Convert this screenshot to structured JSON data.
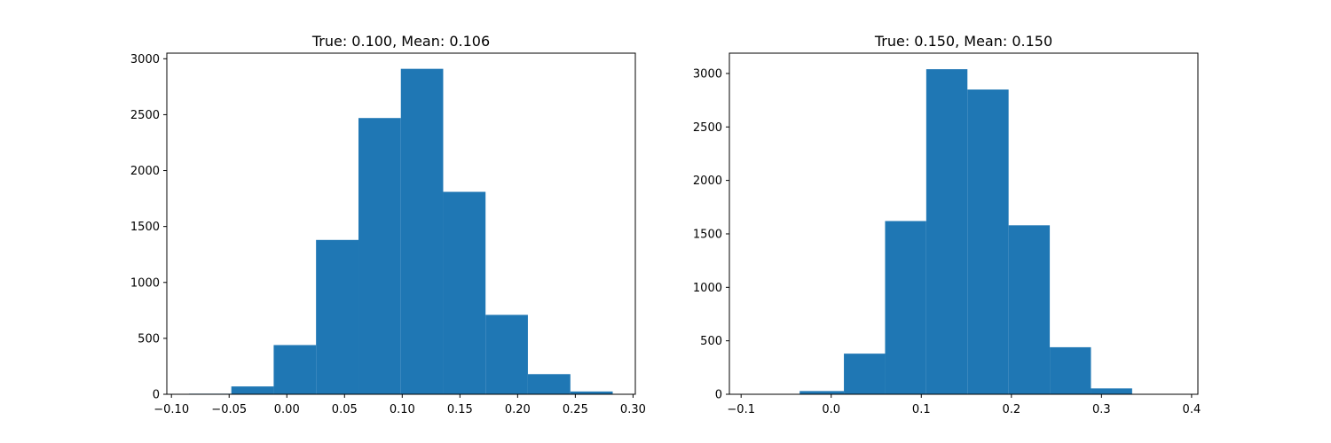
{
  "chart_data": [
    {
      "type": "bar",
      "title": "True: 0.100, Mean: 0.106",
      "xlabel": "",
      "ylabel": "",
      "xlim": [
        -0.104,
        0.302
      ],
      "ylim": [
        0,
        3050
      ],
      "xticks": [
        -0.1,
        -0.05,
        0.0,
        0.05,
        0.1,
        0.15,
        0.2,
        0.25,
        0.3
      ],
      "xtick_labels": [
        "−0.10",
        "−0.05",
        "0.00",
        "0.05",
        "0.10",
        "0.15",
        "0.20",
        "0.25",
        "0.30"
      ],
      "yticks": [
        0,
        500,
        1000,
        1500,
        2000,
        2500,
        3000
      ],
      "ytick_labels": [
        "0",
        "500",
        "1000",
        "1500",
        "2000",
        "2500",
        "3000"
      ],
      "bin_edges": [
        -0.0848,
        -0.0481,
        -0.0114,
        0.0253,
        0.0621,
        0.0988,
        0.1355,
        0.1722,
        0.2089,
        0.2457,
        0.2824
      ],
      "values": [
        5,
        70,
        440,
        1380,
        2470,
        2910,
        1810,
        710,
        180,
        25
      ],
      "grid": false,
      "color": "#1f77b4"
    },
    {
      "type": "bar",
      "title": "True: 0.150, Mean: 0.150",
      "xlabel": "",
      "ylabel": "",
      "xlim": [
        -0.113,
        0.407
      ],
      "ylim": [
        0,
        3190
      ],
      "xticks": [
        -0.1,
        0.0,
        0.1,
        0.2,
        0.3,
        0.4
      ],
      "xtick_labels": [
        "−0.1",
        "0.0",
        "0.1",
        "0.2",
        "0.3",
        "0.4"
      ],
      "yticks": [
        0,
        500,
        1000,
        1500,
        2000,
        2500,
        3000
      ],
      "ytick_labels": [
        "0",
        "500",
        "1000",
        "1500",
        "2000",
        "2500",
        "3000"
      ],
      "bin_edges": [
        -0.0894,
        -0.035,
        0.0141,
        0.0598,
        0.1055,
        0.1512,
        0.1969,
        0.2426,
        0.2883,
        0.334,
        0.3797
      ],
      "values": [
        0,
        30,
        380,
        1620,
        3040,
        2850,
        1580,
        440,
        55,
        0
      ],
      "grid": false,
      "color": "#1f77b4"
    }
  ]
}
